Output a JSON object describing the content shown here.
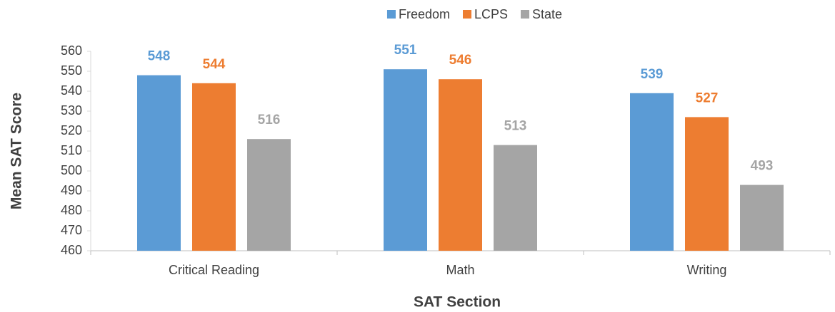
{
  "chart_data": {
    "type": "bar",
    "categories": [
      "Critical Reading",
      "Math",
      "Writing"
    ],
    "series": [
      {
        "name": "Freedom",
        "color": "#5b9bd5",
        "values": [
          548,
          551,
          539
        ]
      },
      {
        "name": "LCPS",
        "color": "#ed7d31",
        "values": [
          544,
          546,
          527
        ]
      },
      {
        "name": "State",
        "color": "#a5a5a5",
        "values": [
          516,
          513,
          493
        ]
      }
    ],
    "xlabel": "SAT Section",
    "ylabel": "Mean SAT Score",
    "ylim": [
      460,
      560
    ],
    "yticks": [
      460,
      470,
      480,
      490,
      500,
      510,
      520,
      530,
      540,
      550,
      560
    ],
    "grid": false,
    "legend": "top"
  }
}
